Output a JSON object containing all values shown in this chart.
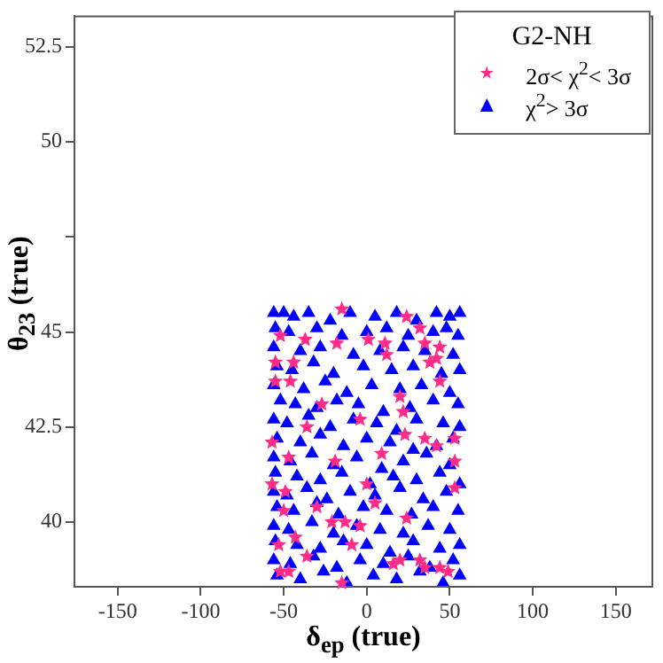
{
  "chart_data": {
    "type": "scatter",
    "xlabel": "δ$_{ep}$ (true)",
    "ylabel": "θ$_{23}$ (true)",
    "legend_title": "G2-NH",
    "legend": "top right",
    "grid": false,
    "xlim": [
      -176,
      172
    ],
    "xticks": [
      -150,
      -100,
      -50,
      0,
      50,
      100,
      150
    ],
    "ylim": [
      38.3,
      53.3
    ],
    "yticks": [
      40,
      42.5,
      45,
      {
        "value": 47.5,
        "label": null
      },
      50,
      52.5
    ],
    "series": [
      {
        "name": "χ$^{2}$> 3σ",
        "color": "#0000ff",
        "marker": "triangle",
        "x": [
          -56,
          -50,
          -44,
          -35,
          -22,
          -10,
          5,
          18,
          30,
          42,
          50,
          56,
          -55,
          -47,
          -30,
          -15,
          0,
          12,
          25,
          40,
          48,
          55,
          -56,
          -40,
          -28,
          -8,
          8,
          22,
          35,
          52,
          -54,
          -45,
          -32,
          -20,
          -2,
          15,
          28,
          45,
          56,
          -56,
          -38,
          -25,
          -12,
          3,
          20,
          33,
          50,
          -52,
          -43,
          -30,
          -18,
          -5,
          10,
          26,
          40,
          55,
          -56,
          -48,
          -35,
          -22,
          -8,
          6,
          18,
          30,
          46,
          56,
          -54,
          -40,
          -28,
          -14,
          0,
          14,
          28,
          42,
          52,
          -56,
          -46,
          -33,
          -20,
          -6,
          9,
          22,
          36,
          50,
          -55,
          -42,
          -28,
          -15,
          2,
          16,
          30,
          44,
          56,
          -56,
          -48,
          -36,
          -24,
          -10,
          5,
          20,
          34,
          48,
          -54,
          -44,
          -30,
          -17,
          -2,
          12,
          27,
          40,
          55,
          -56,
          -47,
          -33,
          -20,
          -6,
          8,
          22,
          37,
          50,
          -55,
          -42,
          -28,
          -14,
          0,
          14,
          28,
          44,
          56,
          -56,
          -46,
          -32,
          -18,
          -4,
          10,
          25,
          38,
          52,
          -54,
          -40,
          -26,
          -12,
          4,
          18,
          32,
          46,
          56
        ],
        "values": [
          45.5,
          45.5,
          45.4,
          45.5,
          45.3,
          45.5,
          45.4,
          45.5,
          45.3,
          45.5,
          45.4,
          45.5,
          45.1,
          45.0,
          45.1,
          44.9,
          45.0,
          45.1,
          44.9,
          45.0,
          45.1,
          44.9,
          44.6,
          44.5,
          44.6,
          44.4,
          44.5,
          44.6,
          44.5,
          44.4,
          44.1,
          44.0,
          44.2,
          43.9,
          44.1,
          44.0,
          44.1,
          43.9,
          44.0,
          43.6,
          43.5,
          43.7,
          43.4,
          43.6,
          43.5,
          43.6,
          43.4,
          43.2,
          43.1,
          43.0,
          43.2,
          43.1,
          42.9,
          43.0,
          43.2,
          43.1,
          42.7,
          42.6,
          42.8,
          42.5,
          42.7,
          42.6,
          42.4,
          42.7,
          42.6,
          42.5,
          42.2,
          42.1,
          42.3,
          42.0,
          42.2,
          42.1,
          41.9,
          42.0,
          42.2,
          41.7,
          41.6,
          41.8,
          41.5,
          41.7,
          41.4,
          41.6,
          41.8,
          41.5,
          41.3,
          41.2,
          41.1,
          41.3,
          41.0,
          41.2,
          41.1,
          41.3,
          41.0,
          40.8,
          40.7,
          40.9,
          40.6,
          40.8,
          40.7,
          40.9,
          40.6,
          40.8,
          40.4,
          40.3,
          40.5,
          40.2,
          40.4,
          40.3,
          40.2,
          40.4,
          40.3,
          39.9,
          39.8,
          40.0,
          39.7,
          39.9,
          39.8,
          39.7,
          39.9,
          39.8,
          39.5,
          39.4,
          39.3,
          39.5,
          39.4,
          39.2,
          39.5,
          39.3,
          39.4,
          39.0,
          38.9,
          39.1,
          38.8,
          39.0,
          38.9,
          39.1,
          38.8,
          39.0,
          38.6,
          38.5,
          38.7,
          38.4,
          38.6,
          38.5,
          38.7,
          38.4,
          38.6
        ]
      },
      {
        "name": "2σ< χ$^{2}$< 3σ",
        "color": "#ff2d87",
        "marker": "star",
        "x": [
          -15,
          24,
          32,
          -37,
          -52,
          -18,
          1,
          11,
          35,
          44,
          -55,
          -44,
          12,
          38,
          42,
          -55,
          -46,
          44,
          20,
          22,
          -27,
          -4,
          -36,
          -57,
          35,
          42,
          53,
          23,
          9,
          -47,
          -19,
          53,
          -57,
          -49,
          0,
          53,
          -30,
          5,
          -50,
          -21,
          -13,
          -4,
          24,
          -53,
          -43,
          -36,
          -9,
          16,
          20,
          32,
          -52,
          -47,
          -15,
          35,
          44,
          49
        ],
        "values": [
          45.6,
          45.4,
          45.1,
          44.8,
          44.9,
          44.7,
          44.8,
          44.7,
          44.7,
          44.6,
          44.2,
          44.2,
          44.4,
          44.2,
          44.3,
          43.7,
          43.7,
          43.7,
          43.3,
          42.9,
          43.1,
          42.7,
          42.5,
          42.1,
          42.2,
          42.0,
          42.2,
          42.3,
          41.8,
          41.7,
          41.6,
          41.6,
          41.0,
          40.8,
          41.0,
          40.9,
          40.4,
          40.5,
          40.3,
          40.0,
          40.0,
          39.9,
          40.1,
          39.4,
          39.6,
          39.1,
          39.4,
          38.9,
          39.0,
          39.0,
          38.7,
          38.7,
          38.4,
          38.8,
          38.8,
          38.7
        ]
      }
    ]
  }
}
